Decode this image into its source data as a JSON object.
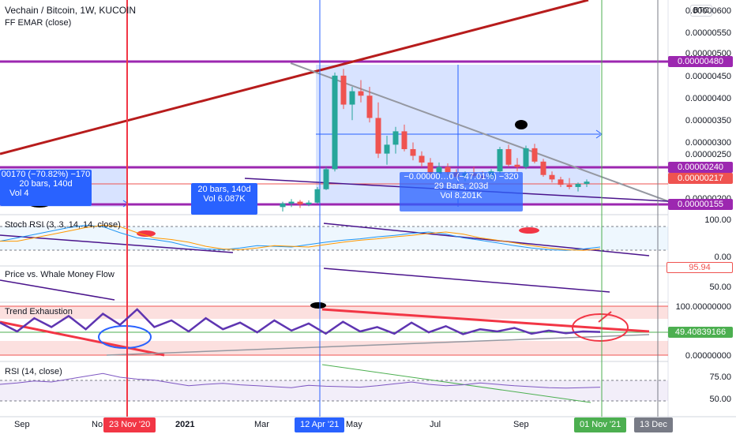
{
  "header": {
    "title": "Vechain / Bitcoin, 1W, KUCOIN",
    "indicator": "FF EMAR (close)",
    "currency_button": "BTC"
  },
  "colors": {
    "up": "#26a69a",
    "down": "#ef5350",
    "purple": "#9c27b0",
    "red_line": "#b71c1c",
    "blue": "#2962ff",
    "green_marker": "#4caf50"
  },
  "price_axis": {
    "ticks": [
      "0.00000600",
      "0.00000550",
      "0.00000500",
      "0.00000450",
      "0.00000400",
      "0.00000350",
      "0.00000300",
      "0.00000250",
      "0.00000200"
    ],
    "levels": {
      "upper": "0.00000480",
      "middle": "0.00000240",
      "lower": "0.00000155",
      "current": "0.00000217"
    }
  },
  "time_axis": {
    "labels": [
      "Sep",
      "No",
      "2021",
      "Mar",
      "May",
      "Jul",
      "Sep"
    ],
    "badges": {
      "red": "23 Nov '20",
      "blue": "12 Apr '21",
      "green": "01 Nov '21",
      "gray": "13 Dec"
    }
  },
  "measure_boxes": [
    {
      "line1": "00170 (−70.82%) −170",
      "line2": "20 bars, 140d",
      "line3": "Vol 4"
    },
    {
      "line1": "20 bars, 140d",
      "line2": "Vol 6.087K"
    },
    {
      "line1": "−0.00000…0 (−47.01%) −320",
      "line2": "29 Bars, 203d",
      "line3": "Vol 8.201K"
    }
  ],
  "panes": {
    "stoch": {
      "title": "Stoch RSI (3, 3, 14, 14, close)",
      "ticks": [
        "100.00",
        "0.00"
      ]
    },
    "whale": {
      "title": "Price vs. Whale Money Flow",
      "ticks": [
        "50.00"
      ],
      "badge": "95.94"
    },
    "trend": {
      "title": "Trend Exhaustion",
      "ticks": [
        "100.00000000",
        "0.00000000"
      ],
      "badge": "49.40839166"
    },
    "rsi": {
      "title": "RSI (14, close)",
      "ticks": [
        "75.00",
        "50.00"
      ]
    }
  },
  "chart_data": {
    "type": "candlestick",
    "title": "Vechain / Bitcoin, 1W, KUCOIN",
    "ylim": [
      1.5e-06,
      6.1e-06
    ],
    "candles": [
      {
        "t": "2021-02-22",
        "o": 1.6e-06,
        "h": 1.72e-06,
        "l": 1.5e-06,
        "c": 1.68e-06
      },
      {
        "t": "2021-03-01",
        "o": 1.68e-06,
        "h": 1.78e-06,
        "l": 1.6e-06,
        "c": 1.72e-06
      },
      {
        "t": "2021-03-08",
        "o": 1.72e-06,
        "h": 1.76e-06,
        "l": 1.58e-06,
        "c": 1.66e-06
      },
      {
        "t": "2021-03-15",
        "o": 1.66e-06,
        "h": 1.75e-06,
        "l": 1.62e-06,
        "c": 1.7e-06
      },
      {
        "t": "2021-03-22",
        "o": 1.7e-06,
        "h": 2.05e-06,
        "l": 1.68e-06,
        "c": 2e-06
      },
      {
        "t": "2021-03-29",
        "o": 2e-06,
        "h": 2.5e-06,
        "l": 1.98e-06,
        "c": 2.45e-06
      },
      {
        "t": "2021-04-05",
        "o": 2.45e-06,
        "h": 4.62e-06,
        "l": 2.4e-06,
        "c": 4.55e-06
      },
      {
        "t": "2021-04-12",
        "o": 4.55e-06,
        "h": 4.7e-06,
        "l": 3.8e-06,
        "c": 3.9e-06
      },
      {
        "t": "2021-04-19",
        "o": 3.9e-06,
        "h": 4.3e-06,
        "l": 3.55e-06,
        "c": 4.2e-06
      },
      {
        "t": "2021-04-26",
        "o": 4.2e-06,
        "h": 4.45e-06,
        "l": 3.95e-06,
        "c": 4.1e-06
      },
      {
        "t": "2021-05-03",
        "o": 4.1e-06,
        "h": 4.3e-06,
        "l": 3.5e-06,
        "c": 3.6e-06
      },
      {
        "t": "2021-05-10",
        "o": 3.6e-06,
        "h": 3.95e-06,
        "l": 2.7e-06,
        "c": 2.8e-06
      },
      {
        "t": "2021-05-17",
        "o": 2.8e-06,
        "h": 3.2e-06,
        "l": 2.55e-06,
        "c": 3e-06
      },
      {
        "t": "2021-05-24",
        "o": 3e-06,
        "h": 3.4e-06,
        "l": 2.8e-06,
        "c": 3.3e-06
      },
      {
        "t": "2021-05-31",
        "o": 3.3e-06,
        "h": 3.45e-06,
        "l": 2.85e-06,
        "c": 2.9e-06
      },
      {
        "t": "2021-06-07",
        "o": 2.9e-06,
        "h": 3.05e-06,
        "l": 2.65e-06,
        "c": 2.75e-06
      },
      {
        "t": "2021-06-14",
        "o": 2.75e-06,
        "h": 2.85e-06,
        "l": 2.5e-06,
        "c": 2.6e-06
      },
      {
        "t": "2021-06-21",
        "o": 2.6e-06,
        "h": 2.7e-06,
        "l": 2.25e-06,
        "c": 2.35e-06
      },
      {
        "t": "2021-06-28",
        "o": 2.35e-06,
        "h": 2.6e-06,
        "l": 2.25e-06,
        "c": 2.5e-06
      },
      {
        "t": "2021-07-05",
        "o": 2.5e-06,
        "h": 2.58e-06,
        "l": 2.32e-06,
        "c": 2.38e-06
      },
      {
        "t": "2021-07-12",
        "o": 2.38e-06,
        "h": 2.45e-06,
        "l": 2.22e-06,
        "c": 2.28e-06
      },
      {
        "t": "2021-07-19",
        "o": 2.28e-06,
        "h": 2.4e-06,
        "l": 2.18e-06,
        "c": 2.36e-06
      },
      {
        "t": "2021-07-26",
        "o": 2.36e-06,
        "h": 2.5e-06,
        "l": 2.25e-06,
        "c": 2.3e-06
      },
      {
        "t": "2021-08-02",
        "o": 2.3e-06,
        "h": 2.4e-06,
        "l": 2.2e-06,
        "c": 2.25e-06
      },
      {
        "t": "2021-08-09",
        "o": 2.25e-06,
        "h": 2.45e-06,
        "l": 2.2e-06,
        "c": 2.4e-06
      },
      {
        "t": "2021-08-16",
        "o": 2.4e-06,
        "h": 2.95e-06,
        "l": 2.35e-06,
        "c": 2.9e-06
      },
      {
        "t": "2021-08-23",
        "o": 2.9e-06,
        "h": 3e-06,
        "l": 2.5e-06,
        "c": 2.55e-06
      },
      {
        "t": "2021-08-30",
        "o": 2.55e-06,
        "h": 2.7e-06,
        "l": 2.4e-06,
        "c": 2.5e-06
      },
      {
        "t": "2021-09-06",
        "o": 2.5e-06,
        "h": 2.98e-06,
        "l": 2.45e-06,
        "c": 2.92e-06
      },
      {
        "t": "2021-09-13",
        "o": 2.92e-06,
        "h": 3.02e-06,
        "l": 2.58e-06,
        "c": 2.62e-06
      },
      {
        "t": "2021-09-20",
        "o": 2.62e-06,
        "h": 2.68e-06,
        "l": 2.28e-06,
        "c": 2.32e-06
      },
      {
        "t": "2021-09-27",
        "o": 2.32e-06,
        "h": 2.4e-06,
        "l": 2.15e-06,
        "c": 2.22e-06
      },
      {
        "t": "2021-10-04",
        "o": 2.22e-06,
        "h": 2.28e-06,
        "l": 2.05e-06,
        "c": 2.1e-06
      },
      {
        "t": "2021-10-11",
        "o": 2.1e-06,
        "h": 2.25e-06,
        "l": 2e-06,
        "c": 2.05e-06
      },
      {
        "t": "2021-10-18",
        "o": 2.05e-06,
        "h": 2.15e-06,
        "l": 1.95e-06,
        "c": 2.12e-06
      },
      {
        "t": "2021-10-25",
        "o": 2.12e-06,
        "h": 2.22e-06,
        "l": 2.05e-06,
        "c": 2.17e-06
      }
    ],
    "stoch_rsi": [
      45,
      55,
      65,
      75,
      85,
      92,
      88,
      70,
      55,
      50,
      42,
      30,
      22,
      20,
      25,
      32,
      30,
      28,
      35,
      42,
      48,
      52,
      58,
      62,
      68,
      72,
      66,
      55,
      48,
      40,
      32,
      25,
      20,
      18,
      22,
      28
    ],
    "trend_exhaustion": [
      70,
      50,
      80,
      60,
      85,
      55,
      90,
      65,
      100,
      60,
      75,
      50,
      80,
      55,
      70,
      48,
      75,
      52,
      68,
      45,
      72,
      50,
      60,
      45,
      70,
      48,
      62,
      44,
      55,
      50,
      58,
      45,
      52,
      46,
      50,
      49
    ],
    "rsi": [
      55,
      58,
      62,
      60,
      66,
      72,
      78,
      70,
      66,
      64,
      58,
      52,
      55,
      57,
      54,
      52,
      50,
      48,
      53,
      51,
      50,
      49,
      52,
      56,
      60,
      55,
      52,
      54,
      58,
      55,
      52,
      50,
      48,
      47,
      48,
      49
    ]
  }
}
